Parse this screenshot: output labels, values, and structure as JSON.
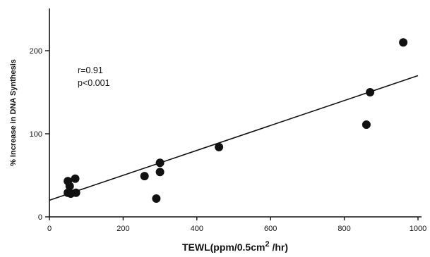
{
  "chart_data": {
    "type": "scatter",
    "xlabel": "TEWL(ppm/0.5cm",
    "xlabel_sup": "2",
    "xlabel_tail": " /hr)",
    "ylabel": "% Increase in DNA Synthesis",
    "xlim": [
      0,
      1000
    ],
    "ylim": [
      0,
      250
    ],
    "x_ticks": [
      0,
      200,
      400,
      600,
      800,
      1000
    ],
    "y_ticks": [
      0,
      100,
      200
    ],
    "grid": false,
    "annotations": [
      "r=0.91",
      "p<0.001"
    ],
    "series": [
      {
        "points": [
          {
            "x": 50,
            "y": 43
          },
          {
            "x": 55,
            "y": 37
          },
          {
            "x": 50,
            "y": 29
          },
          {
            "x": 58,
            "y": 28
          },
          {
            "x": 70,
            "y": 46
          },
          {
            "x": 72,
            "y": 29
          },
          {
            "x": 258,
            "y": 49
          },
          {
            "x": 290,
            "y": 22
          },
          {
            "x": 300,
            "y": 65
          },
          {
            "x": 300,
            "y": 54
          },
          {
            "x": 460,
            "y": 84
          },
          {
            "x": 860,
            "y": 111
          },
          {
            "x": 870,
            "y": 150
          },
          {
            "x": 960,
            "y": 210
          }
        ]
      }
    ],
    "regression_line": {
      "x": [
        0,
        1000
      ],
      "y": [
        20,
        170
      ]
    }
  }
}
